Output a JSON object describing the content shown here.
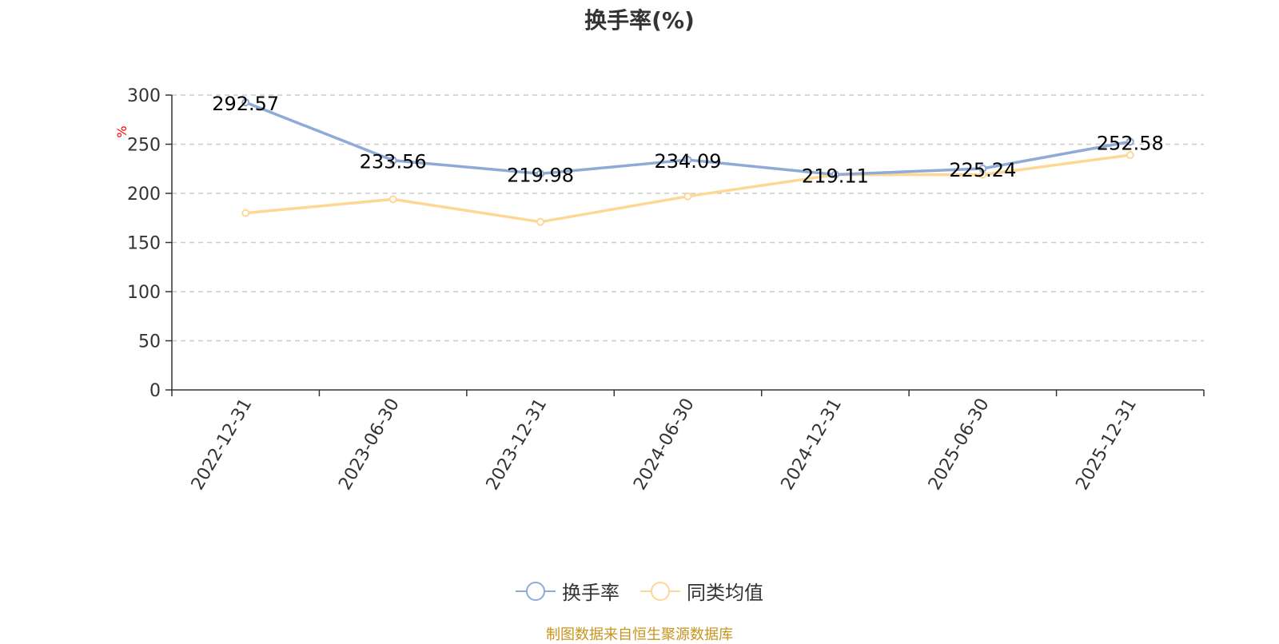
{
  "chart_data": {
    "type": "line",
    "title": "换手率(%)",
    "ylabel": "%",
    "ylim": [
      0,
      300
    ],
    "yticks": [
      0,
      50,
      100,
      150,
      200,
      250,
      300
    ],
    "grid": true,
    "legend_position": "bottom-center",
    "categories": [
      "2022-12-31",
      "2023-06-30",
      "2023-12-31",
      "2024-06-30",
      "2024-12-31",
      "2025-06-30",
      "2025-12-31"
    ],
    "series": [
      {
        "name": "换手率",
        "color": "#8eaad6",
        "values": [
          292.57,
          233.56,
          219.98,
          234.09,
          219.11,
          225.24,
          252.58
        ],
        "labels": [
          "292.57",
          "233.56",
          "219.98",
          "234.09",
          "219.11",
          "225.24",
          "252.58"
        ]
      },
      {
        "name": "同类均值",
        "color": "#fdd895",
        "values": [
          180,
          194,
          171,
          197,
          219,
          219,
          239
        ]
      }
    ]
  },
  "source_note": "制图数据来自恒生聚源数据库"
}
